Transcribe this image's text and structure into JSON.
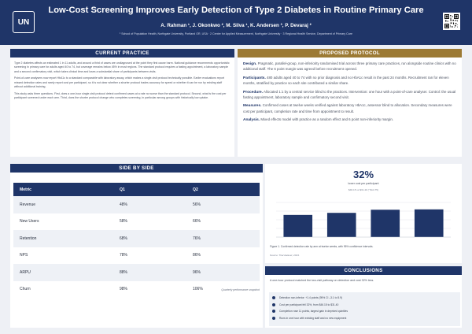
{
  "header": {
    "logo": "UN",
    "title": "Low-Cost Screening Improves Early Detection of Type 2 Diabetes in Routine Primary Care",
    "authors": "A. Rahman ¹, J. Okonkwo ², M. Silva ¹, K. Andersen ³, P. Devaraj ²",
    "affiliations": "¹ School of Population Health, Northgate University, Portland OR, USA · 2 Centre for Applied Measurement, Northgate University · 3 Regional Health Service, Department of Primary Care"
  },
  "current_practice": {
    "heading": "CURRENT PRACTICE",
    "paragraphs": [
      "Type 2 diabetes affects an estimated 1 in 11 adults, and around a third of cases are undiagnosed at the point they first cause harm. National guidance recommends opportunistic screening in primary care for adults aged 40 to 74, but coverage remains below 45% in most regions. The standard protocol requires a fasting appointment, a laboratory sample and a second confirmatory visit, which takes clinical time and loses a substantial share of participants between visits.",
      "Point-of-care analysers now report HbA1c to a standard comparable with laboratory assay, which makes a single-visit protocol technically possible. Earlier evaluations report missed detection rates and rarely report cost per participant, so it is not clear whether a shorter protocol trades accuracy for speed or whether it can be run by existing staff without additional training.",
      "This study asks three questions. First, does a one-hour single-visit protocol detect confirmed cases at a rate no worse than the standard protocol. Second, what is the cost per participant screened under each arm. Third, does the shorter protocol change who completes screening, in particular among groups with historically low uptake."
    ]
  },
  "proposed_protocol": {
    "heading": "PROPOSED PROTOCOL",
    "items": [
      {
        "label": "Design.",
        "text": "Pragmatic, parallel-group, non-inferiority randomised trial across three primary care practices, run alongside routine clinics with no additional staff. The 6 point margin was agreed before recruitment opened."
      },
      {
        "label": "Participants.",
        "text": "480 adults aged 40 to 74 with no prior diagnosis and no HbA1c result in the past 24 months. Recruitment ran for eleven months, stratified by practice so each site contributed a similar share."
      },
      {
        "label": "Procedure.",
        "text": "Allocated 1:1 by a central service blind to the practices. Intervention: one hour with a point-of-care analyser. Control: the usual fasting appointment, laboratory sample and confirmatory second visit."
      },
      {
        "label": "Measures.",
        "text": "Confirmed cases at twelve weeks verified against laboratory HbA1c, assessor blind to allocation. Secondary measures were cost per participant, completion rate and time from appointment to result."
      },
      {
        "label": "Analysis.",
        "text": "Mixed effects model with practice as a random effect and 6 point non-inferiority margin."
      }
    ]
  },
  "side_by_side": {
    "heading": "SIDE BY SIDE",
    "columns": [
      "Metric",
      "Q1",
      "Q2"
    ],
    "rows": [
      [
        "Revenue",
        "48%",
        "56%"
      ],
      [
        "New Users",
        "58%",
        "66%"
      ],
      [
        "Retention",
        "68%",
        "76%"
      ],
      [
        "NPS",
        "78%",
        "86%"
      ],
      [
        "ARPU",
        "88%",
        "96%"
      ],
      [
        "Churn",
        "98%",
        "106%"
      ]
    ],
    "caption": "Quarterly performance snapshot"
  },
  "key_stat": {
    "value": "32%",
    "label": "lower cost per participant",
    "sub": "$46.15 vs $31.40 (−$14.75)"
  },
  "chart_data": {
    "type": "bar",
    "categories": [
      "1",
      "2",
      "3",
      "4"
    ],
    "values": [
      64,
      70,
      79,
      80
    ],
    "ylim": [
      0,
      100
    ],
    "grid": true,
    "title": "",
    "xlabel": "",
    "ylabel": "",
    "bar_color": "#1f3568"
  },
  "figure": {
    "caption": "Figure 1. Confirmed detection rate by arm at twelve weeks, with 95% confidence intervals.",
    "source": "Source: Trial dataset, 2024."
  },
  "conclusions": {
    "heading": "CONCLUSIONS",
    "summary": "A one-hour protocol matched the two-visit pathway on detection and cost 32% less.",
    "bullets": [
      "Detection non-inferior: +1.4 points (95% CI –3.1 to 5.9)",
      "Cost per participant fell 32%, from $46.15 to $31.40",
      "Completion rose 11 points, largest gain in deprived quintiles",
      "Runs in one hour with existing staff and no new equipment"
    ]
  },
  "colors": {
    "navy": "#1f3568",
    "gold": "#9c7a34",
    "background": "#eef0f5"
  }
}
